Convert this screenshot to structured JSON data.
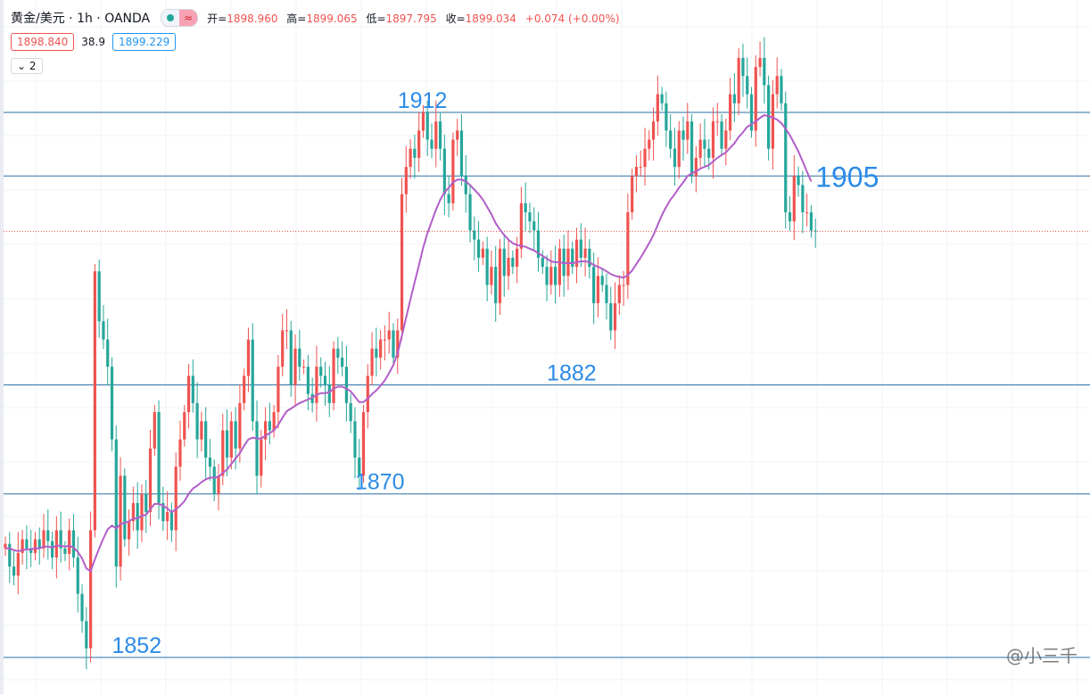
{
  "header": {
    "symbol": "黄金/美元 · 1h · OANDA",
    "open_label": "开=",
    "open": "1898.960",
    "high_label": "高=",
    "high": "1899.065",
    "low_label": "低=",
    "low": "1897.795",
    "close_label": "收=",
    "close": "1899.034",
    "change": "+0.074 (+0.00%)"
  },
  "quote": {
    "sell": "1898.840",
    "spread": "38.9",
    "buy": "1899.229"
  },
  "collapse": {
    "count": "2"
  },
  "watermark": "@小三千",
  "colors": {
    "up": "#ef5350",
    "down": "#26a69a",
    "ma": "#b25ec8",
    "level": "#2a6fa3",
    "annot": "#2b8be6"
  },
  "chart_data": {
    "type": "candlestick",
    "title": "",
    "ylim": [
      1848,
      1924
    ],
    "levels": [
      1852,
      1870,
      1882,
      1905,
      1912
    ],
    "current_price": 1898.9,
    "annotations": [
      {
        "text": "1912",
        "price": 1912,
        "bar": 92
      },
      {
        "text": "1905",
        "price": 1905,
        "bar": 190
      },
      {
        "text": "1882",
        "price": 1882,
        "bar": 127
      },
      {
        "text": "1870",
        "price": 1870,
        "bar": 82
      },
      {
        "text": "1852",
        "price": 1852,
        "bar": 25
      }
    ],
    "close": [
      1864.5,
      1862,
      1861,
      1863.5,
      1865,
      1864,
      1863.5,
      1865,
      1864,
      1866,
      1864.8,
      1863,
      1866,
      1864,
      1863.4,
      1866,
      1863,
      1859,
      1856,
      1853,
      1866,
      1894.5,
      1889,
      1887,
      1884,
      1876,
      1862,
      1872,
      1865,
      1867,
      1869,
      1866,
      1870,
      1868,
      1875,
      1879,
      1869,
      1867,
      1868,
      1866,
      1873,
      1876,
      1879,
      1883,
      1880,
      1876,
      1878,
      1874,
      1873,
      1870,
      1872,
      1877,
      1874,
      1878,
      1875,
      1880,
      1883,
      1887,
      1878,
      1872,
      1876,
      1878,
      1877,
      1879,
      1884,
      1888,
      1888,
      1882,
      1886,
      1884,
      1884,
      1881,
      1880,
      1884,
      1883,
      1882,
      1880,
      1886,
      1885,
      1884,
      1880,
      1878,
      1874,
      1872,
      1879,
      1883,
      1886,
      1885,
      1887,
      1887,
      1888,
      1885,
      1888,
      1903,
      1906,
      1908,
      1907,
      1910,
      1912,
      1909,
      1908,
      1911,
      1908,
      1903,
      1902,
      1909,
      1910,
      1905,
      1903,
      1899,
      1898,
      1896,
      1897,
      1893,
      1895,
      1891,
      1897,
      1894,
      1896,
      1895,
      1897,
      1902,
      1901,
      1900,
      1899,
      1896,
      1895,
      1893,
      1895,
      1893,
      1897,
      1894,
      1897,
      1895,
      1898,
      1896,
      1897,
      1895,
      1891,
      1894,
      1893,
      1891,
      1888,
      1891,
      1893,
      1893,
      1901,
      1905,
      1906,
      1906,
      1908,
      1909,
      1911,
      1914,
      1913,
      1910,
      1908,
      1906,
      1910,
      1909,
      1911,
      1905,
      1907,
      1909,
      1908,
      1907,
      1911,
      1911,
      1908,
      1910,
      1914,
      1913,
      1918,
      1916,
      1914,
      1910,
      1917,
      1918,
      1915,
      1908,
      1914,
      1916,
      1913,
      1901,
      1900,
      1905,
      1904,
      1901,
      1901,
      1899,
      1898.9
    ],
    "open": [
      1864,
      1864.5,
      1862,
      1861,
      1863.5,
      1865,
      1864,
      1863.5,
      1865,
      1864,
      1866,
      1864.8,
      1863,
      1866,
      1864,
      1863.4,
      1866,
      1863,
      1859,
      1856,
      1853,
      1866,
      1894.5,
      1889,
      1887,
      1884,
      1876,
      1862,
      1872,
      1865,
      1867,
      1869,
      1866,
      1870,
      1868,
      1875,
      1879,
      1869,
      1867,
      1868,
      1866,
      1873,
      1876,
      1879,
      1883,
      1880,
      1876,
      1878,
      1874,
      1873,
      1870,
      1872,
      1877,
      1874,
      1878,
      1875,
      1880,
      1883,
      1887,
      1878,
      1872,
      1876,
      1878,
      1877,
      1879,
      1884,
      1888,
      1888,
      1882,
      1886,
      1884,
      1884,
      1881,
      1880,
      1884,
      1883,
      1882,
      1880,
      1886,
      1885,
      1884,
      1880,
      1878,
      1874,
      1872,
      1879,
      1883,
      1886,
      1885,
      1887,
      1887,
      1888,
      1885,
      1888,
      1903,
      1906,
      1908,
      1907,
      1910,
      1912,
      1909,
      1908,
      1911,
      1908,
      1903,
      1902,
      1909,
      1910,
      1905,
      1903,
      1899,
      1898,
      1896,
      1897,
      1893,
      1895,
      1891,
      1897,
      1894,
      1896,
      1895,
      1897,
      1902,
      1901,
      1900,
      1899,
      1896,
      1895,
      1893,
      1895,
      1893,
      1897,
      1894,
      1897,
      1895,
      1898,
      1896,
      1897,
      1895,
      1891,
      1894,
      1893,
      1891,
      1888,
      1891,
      1893,
      1893,
      1901,
      1905,
      1906,
      1906,
      1908,
      1909,
      1911,
      1914,
      1913,
      1910,
      1908,
      1906,
      1910,
      1909,
      1911,
      1905,
      1907,
      1909,
      1908,
      1907,
      1911,
      1911,
      1908,
      1910,
      1914,
      1913,
      1918,
      1916,
      1914,
      1910,
      1917,
      1918,
      1915,
      1908,
      1914,
      1916,
      1913,
      1901,
      1900,
      1905,
      1904,
      1901,
      1901,
      1899
    ],
    "ma": [
      1864,
      1864,
      1863.8,
      1863.7,
      1863.8,
      1863.9,
      1863.9,
      1864,
      1864,
      1864.2,
      1864.2,
      1864.1,
      1864.3,
      1864.3,
      1864.2,
      1864.3,
      1864.1,
      1863.6,
      1862.9,
      1861.8,
      1861.5,
      1862.8,
      1864,
      1865.1,
      1866.1,
      1866.5,
      1866.2,
      1866.7,
      1866.8,
      1867,
      1867.3,
      1867.3,
      1867.6,
      1867.7,
      1868.3,
      1868.9,
      1868.9,
      1868.7,
      1868.4,
      1868,
      1868.3,
      1868.7,
      1869.2,
      1870,
      1870.6,
      1870.9,
      1871.3,
      1871.6,
      1871.8,
      1871.8,
      1871.9,
      1872.3,
      1872.7,
      1873.3,
      1873.9,
      1874.5,
      1875.3,
      1876,
      1876.2,
      1876.1,
      1876.1,
      1876.4,
      1876.7,
      1877,
      1877.6,
      1878.4,
      1879.1,
      1879.4,
      1879.7,
      1880,
      1880.2,
      1880.4,
      1880.6,
      1880.9,
      1881.1,
      1881.1,
      1881.2,
      1881.6,
      1881.8,
      1881.8,
      1881.6,
      1881.3,
      1880.7,
      1880.1,
      1880.1,
      1880.5,
      1881,
      1881.4,
      1881.9,
      1882.5,
      1883.3,
      1884.2,
      1885.5,
      1887.4,
      1889.4,
      1891.4,
      1893.3,
      1895.2,
      1897.1,
      1898.7,
      1900,
      1901.3,
      1902.4,
      1903.2,
      1903.7,
      1904.3,
      1904.6,
      1904.6,
      1904.4,
      1904,
      1903.5,
      1903,
      1902.4,
      1901.6,
      1900.8,
      1899.8,
      1899.1,
      1898.5,
      1898,
      1897.6,
      1897.4,
      1897.3,
      1897.2,
      1897,
      1896.8,
      1896.5,
      1896.2,
      1895.9,
      1895.6,
      1895.5,
      1895.5,
      1895.4,
      1895.4,
      1895.4,
      1895.5,
      1895.6,
      1895.6,
      1895.5,
      1895.2,
      1895,
      1894.8,
      1894.5,
      1894.2,
      1894,
      1893.9,
      1893.8,
      1894.1,
      1894.6,
      1895.3,
      1896,
      1896.8,
      1897.6,
      1898.5,
      1899.6,
      1900.7,
      1901.6,
      1902.4,
      1903,
      1903.7,
      1904.3,
      1905,
      1905.3,
      1905.5,
      1905.8,
      1906,
      1906.2,
      1906.6,
      1907,
      1907.3,
      1907.6,
      1908.1,
      1908.6,
      1909.3,
      1909.8,
      1910.4,
      1910.7,
      1911,
      1911.4,
      1911.7,
      1911.6,
      1911.4,
      1911.2,
      1910.8,
      1910.2,
      1909.5,
      1908.6,
      1907.7,
      1906.6,
      1905.5,
      1904.4
    ]
  }
}
